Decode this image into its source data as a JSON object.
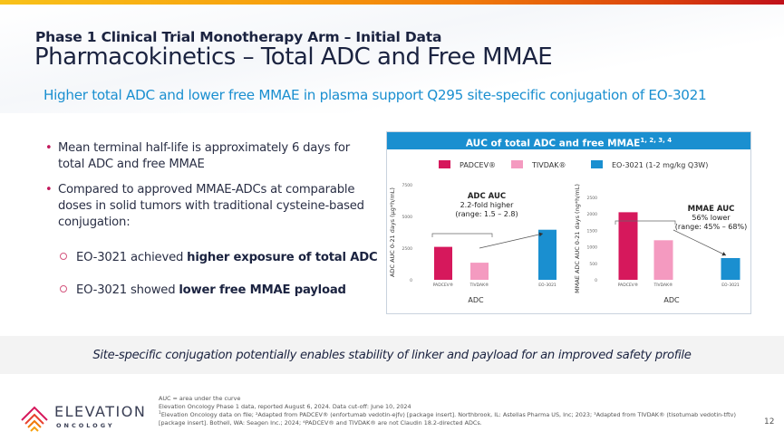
{
  "header": {
    "kicker": "Phase 1 Clinical Trial Monotherapy Arm – Initial Data",
    "title": "Pharmacokinetics – Total ADC and Free MMAE",
    "subtitle": "Higher total ADC and lower free MMAE in plasma support Q295 site-specific conjugation of EO-3021"
  },
  "bullets": [
    {
      "text": "Mean terminal half-life is approximately 6 days for total ADC and free MMAE"
    },
    {
      "text": "Compared to approved MMAE-ADCs at comparable doses in solid tumors with traditional cysteine-based conjugation:"
    }
  ],
  "sub_bullets": [
    {
      "prefix": "EO-3021 achieved ",
      "bold": "higher exposure of total ADC"
    },
    {
      "prefix": "EO-3021 showed ",
      "bold": "lower free MMAE payload"
    }
  ],
  "panel": {
    "title": "AUC of total ADC and free MMAE",
    "title_refs": "1, 2, 3, 4"
  },
  "chart_data": [
    {
      "type": "bar",
      "title": "ADC AUC",
      "categories": [
        "PADCEV®",
        "TIVDAK®",
        "EO-3021"
      ],
      "values": [
        2600,
        1350,
        3950
      ],
      "colors": [
        "#d6185c",
        "#f49ac0",
        "#1a8fd0"
      ],
      "xlabel": "ADC",
      "ylabel": "ADC AUC 0-21 days (µg*h/mL)",
      "ylim": [
        0,
        7500
      ],
      "yticks": [
        0,
        2500,
        5000,
        7500
      ],
      "legend": [
        {
          "label": "PADCEV®",
          "color": "#d6185c"
        },
        {
          "label": "TIVDAK®",
          "color": "#f49ac0"
        },
        {
          "label": "EO-3021 (1-2 mg/kg Q3W)",
          "color": "#1a8fd0"
        }
      ],
      "legend_position": "top",
      "annotation": {
        "title": "ADC AUC",
        "line1": "2.2-fold higher",
        "line2": "(range: 1.5 – 2.8)"
      }
    },
    {
      "type": "bar",
      "title": "MMAE AUC",
      "categories": [
        "PADCEV®",
        "TIVDAK®",
        "EO-3021"
      ],
      "values": [
        2050,
        1200,
        660
      ],
      "colors": [
        "#d6185c",
        "#f49ac0",
        "#1a8fd0"
      ],
      "xlabel": "ADC",
      "ylabel": "MMAE ADC AUC 0-21 days (ng*h/mL)",
      "ylim": [
        0,
        2500
      ],
      "yticks": [
        0,
        500,
        1000,
        1500,
        2000,
        2500
      ],
      "annotation": {
        "title": "MMAE AUC",
        "line1": "56% lower",
        "line2": "(range: 45% – 68%)"
      }
    }
  ],
  "band": {
    "text": "Site-specific conjugation potentially enables stability of linker and payload for an improved safety profile"
  },
  "footnotes": {
    "line1": "AUC = area under the curve",
    "line2": "Elevation Oncology Phase 1 data, reported August 6, 2024. Data cut-off: June 10, 2024",
    "line3": "Elevation Oncology data on file; ²Adapted from PADCEV® (enfortumab vedotin-ejfv) [package insert]. Northbrook, IL: Astellas Pharma US, Inc; 2023; ³Adapted from TIVDAK® (tisotumab vedotin-tftv) [package insert]. Bothell, WA: Seagen Inc.; 2024; ⁴PADCEV® and TIVDAK® are not Claudin 18.2-directed ADCs.",
    "line3_ref": "1"
  },
  "page_number": "12",
  "logo": {
    "word": "ELEVATION",
    "sub": "ONCOLOGY"
  }
}
